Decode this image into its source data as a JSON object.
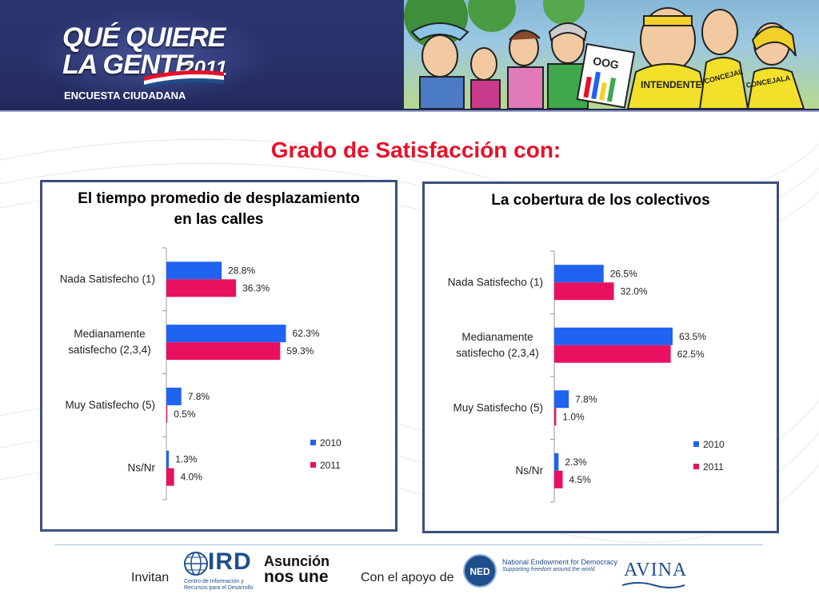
{
  "header": {
    "brand_title_line1": "QUÉ QUIERE",
    "brand_title_line2": "LA GENTE",
    "brand_year": "2011",
    "brand_subtitle": "ENCUESTA CIUDADANA",
    "cartoon_signs": [
      "OOG",
      "INTENDENTE",
      "CONCEJAL",
      "CONCEJALA"
    ]
  },
  "main_title": "Grado de Satisfacción con:",
  "colors": {
    "series_2010": "#1f63f0",
    "series_2011": "#e8105f",
    "panel_border": "#3b4f7e",
    "title_red": "#e8102a"
  },
  "chart_data": [
    {
      "type": "bar",
      "orientation": "horizontal",
      "title_line1": "El tiempo promedio de  desplazamiento",
      "title_line2": "en las  calles",
      "categories": [
        "Nada Satisfecho (1)",
        "Medianamente satisfecho (2,3,4)",
        "Muy Satisfecho (5)",
        "Ns/Nr"
      ],
      "category_lines": [
        [
          "Nada Satisfecho (1)"
        ],
        [
          "Medianamente",
          "satisfecho (2,3,4)"
        ],
        [
          "Muy Satisfecho (5)"
        ],
        [
          "Ns/Nr"
        ]
      ],
      "series": [
        {
          "name": "2010",
          "values": [
            28.8,
            62.3,
            7.8,
            1.3
          ],
          "labels": [
            "28.8%",
            "62.3%",
            "7.8%",
            "1.3%"
          ]
        },
        {
          "name": "2011",
          "values": [
            36.3,
            59.3,
            0.5,
            4.0
          ],
          "labels": [
            "36.3%",
            "59.3%",
            "0.5%",
            "4.0%"
          ]
        }
      ],
      "xlim": [
        0,
        100
      ],
      "legend": "right"
    },
    {
      "type": "bar",
      "orientation": "horizontal",
      "title_line1": "La cobertura de los colectivos",
      "title_line2": "",
      "categories": [
        "Nada Satisfecho (1)",
        "Medianamente satisfecho (2,3,4)",
        "Muy Satisfecho (5)",
        "Ns/Nr"
      ],
      "category_lines": [
        [
          "Nada Satisfecho (1)"
        ],
        [
          "Medianamente",
          "satisfecho (2,3,4)"
        ],
        [
          "Muy Satisfecho (5)"
        ],
        [
          "Ns/Nr"
        ]
      ],
      "series": [
        {
          "name": "2010",
          "values": [
            26.5,
            63.5,
            7.8,
            2.3
          ],
          "labels": [
            "26.5%",
            "63.5%",
            "7.8%",
            "2.3%"
          ]
        },
        {
          "name": "2011",
          "values": [
            32.0,
            62.5,
            1.0,
            4.5
          ],
          "labels": [
            "32.0%",
            "62.5%",
            "1.0%",
            "4.5%"
          ]
        }
      ],
      "xlim": [
        0,
        100
      ],
      "legend": "right"
    }
  ],
  "footer": {
    "invitan": "Invitan",
    "ird_logo_text": "IRD",
    "ird_logo_sub": "Centro de Información y Recursos para el Desarrollo",
    "asuncion_line1": "Asunción",
    "asuncion_line2": "nos une",
    "con_apoyo": "Con el apoyo de",
    "ned_badge": "NED",
    "ned_line1": "National Endowment for Democracy",
    "ned_line2": "Supporting freedom around the world",
    "avina": "AVINA"
  }
}
